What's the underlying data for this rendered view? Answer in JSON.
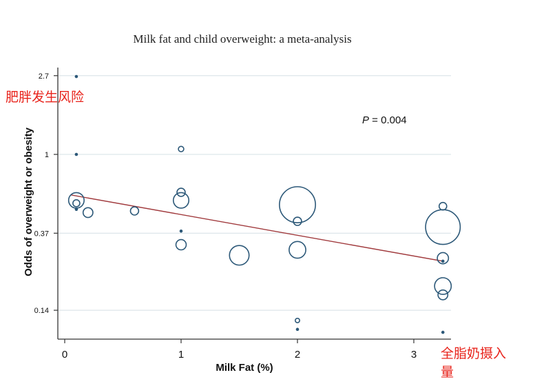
{
  "chart_data": {
    "type": "scatter",
    "subtype": "bubble-meta-regression",
    "title": "Milk fat and child overweight: a meta-analysis",
    "xlabel": "Milk Fat (%)",
    "ylabel": "Odds of overweight or obesity",
    "x_ticks": [
      0,
      1,
      2,
      3
    ],
    "x_tick_labels": [
      "0",
      "1",
      "2",
      "3"
    ],
    "xlim": [
      -0.05,
      3.35
    ],
    "y_scale": "log",
    "y_ticks": [
      2.7,
      1,
      0.37,
      0.14
    ],
    "y_tick_labels": [
      "2.7",
      "1",
      "0.37",
      "0.14"
    ],
    "ylim": [
      0.095,
      3.0
    ],
    "grid": "horizontal at y ticks",
    "p_value_label": {
      "italic": "P",
      "rest": " = 0.004"
    },
    "point_color": "#2c5878",
    "line_color": "#a0393c",
    "points": [
      {
        "x": 0.1,
        "y": 2.67,
        "weight": 1
      },
      {
        "x": 0.1,
        "y": 1.0,
        "weight": 1
      },
      {
        "x": 0.1,
        "y": 0.56,
        "weight": 25
      },
      {
        "x": 0.1,
        "y": 0.54,
        "weight": 5
      },
      {
        "x": 0.1,
        "y": 0.5,
        "weight": 1
      },
      {
        "x": 0.2,
        "y": 0.48,
        "weight": 10
      },
      {
        "x": 0.6,
        "y": 0.49,
        "weight": 7
      },
      {
        "x": 1.0,
        "y": 1.07,
        "weight": 3
      },
      {
        "x": 1.0,
        "y": 0.62,
        "weight": 7
      },
      {
        "x": 1.0,
        "y": 0.56,
        "weight": 25
      },
      {
        "x": 1.0,
        "y": 0.38,
        "weight": 1
      },
      {
        "x": 1.0,
        "y": 0.32,
        "weight": 11
      },
      {
        "x": 1.5,
        "y": 0.28,
        "weight": 40
      },
      {
        "x": 2.0,
        "y": 0.53,
        "weight": 135
      },
      {
        "x": 2.0,
        "y": 0.43,
        "weight": 7
      },
      {
        "x": 2.0,
        "y": 0.3,
        "weight": 29
      },
      {
        "x": 2.0,
        "y": 0.123,
        "weight": 2
      },
      {
        "x": 2.0,
        "y": 0.11,
        "weight": 1
      },
      {
        "x": 3.25,
        "y": 0.52,
        "weight": 6
      },
      {
        "x": 3.25,
        "y": 0.4,
        "weight": 125
      },
      {
        "x": 3.25,
        "y": 0.27,
        "weight": 13
      },
      {
        "x": 3.25,
        "y": 0.26,
        "weight": 1
      },
      {
        "x": 3.25,
        "y": 0.19,
        "weight": 29
      },
      {
        "x": 3.25,
        "y": 0.17,
        "weight": 10
      },
      {
        "x": 3.25,
        "y": 0.106,
        "weight": 1
      }
    ],
    "fit_line": {
      "x": [
        0.05,
        3.25
      ],
      "y": [
        0.6,
        0.26
      ]
    }
  },
  "annotations": {
    "y_cn": "肥胖发生风险",
    "x_cn_line1": "全脂奶摄入",
    "x_cn_line2": "量"
  }
}
